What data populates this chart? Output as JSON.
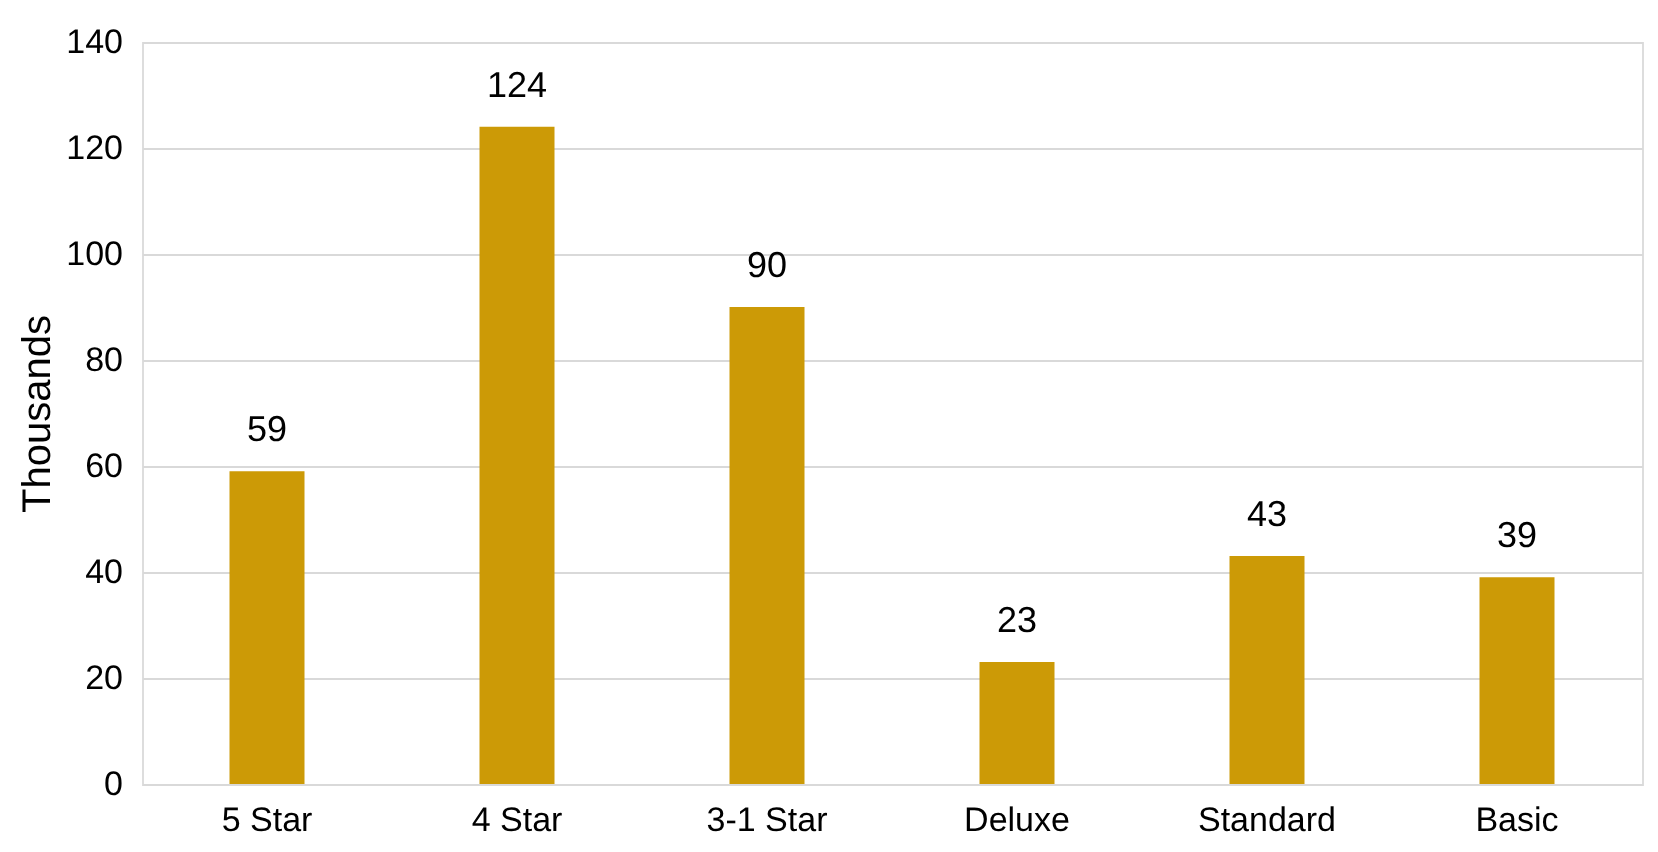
{
  "chart_data": {
    "type": "bar",
    "ylabel": "Thousands",
    "categories": [
      "5 Star",
      "4 Star",
      "3-1 Star",
      "Deluxe",
      "Standard",
      "Basic"
    ],
    "values": [
      59,
      124,
      90,
      23,
      43,
      39
    ],
    "color": "#cc9a06",
    "ylim": [
      0,
      140
    ],
    "yticks": [
      0,
      20,
      40,
      60,
      80,
      100,
      120,
      140
    ],
    "grid": "y",
    "data_labels": true
  }
}
